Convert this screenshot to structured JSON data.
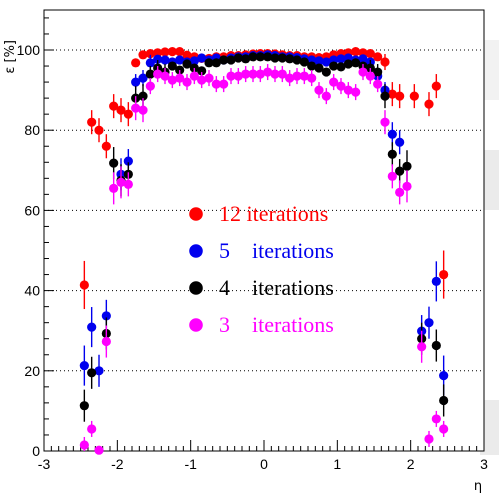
{
  "chart_data": {
    "type": "scatter",
    "xlabel": "η",
    "ylabel": "ε [%]",
    "xlim": [
      -3,
      3
    ],
    "ylim": [
      0,
      110
    ],
    "x_ticks": [
      "-3",
      "-2",
      "-1",
      "0",
      "1",
      "2",
      "3"
    ],
    "y_ticks": [
      "0",
      "20",
      "40",
      "60",
      "80",
      "100"
    ],
    "grid_y": true,
    "legend_position": "center",
    "series": [
      {
        "name": "12 iterations",
        "legend_text": "12 iterations",
        "color": "#ff0000",
        "points": [
          [
            -2.45,
            41.4,
            6
          ],
          [
            -2.35,
            82.0,
            3
          ],
          [
            -2.25,
            80.0,
            3
          ],
          [
            -2.15,
            76.0,
            3
          ],
          [
            -2.05,
            86.0,
            3
          ],
          [
            -1.95,
            85.0,
            3
          ],
          [
            -1.85,
            84.0,
            3
          ],
          [
            -1.75,
            96.8,
            1
          ],
          [
            -1.65,
            98.8,
            1
          ],
          [
            -1.55,
            99.1,
            1
          ],
          [
            -1.45,
            99.3,
            1
          ],
          [
            -1.35,
            99.5,
            1
          ],
          [
            -1.25,
            99.6,
            1
          ],
          [
            -1.15,
            99.6,
            1
          ],
          [
            -1.05,
            98.7,
            1
          ],
          [
            -0.95,
            98.3,
            1
          ],
          [
            -0.85,
            97.9,
            1
          ],
          [
            -0.75,
            97.9,
            1
          ],
          [
            -0.65,
            98.3,
            1
          ],
          [
            -0.55,
            98.3,
            1
          ],
          [
            -0.45,
            98.6,
            1
          ],
          [
            -0.35,
            98.6,
            1
          ],
          [
            -0.25,
            98.8,
            1
          ],
          [
            -0.15,
            99.0,
            1
          ],
          [
            -0.05,
            99.1,
            1
          ],
          [
            0.05,
            99.1,
            1
          ],
          [
            0.15,
            99.0,
            1
          ],
          [
            0.25,
            98.8,
            1
          ],
          [
            0.35,
            98.6,
            1
          ],
          [
            0.45,
            98.6,
            1
          ],
          [
            0.55,
            98.3,
            1
          ],
          [
            0.65,
            98.3,
            1
          ],
          [
            0.75,
            98.1,
            1
          ],
          [
            0.85,
            98.3,
            1
          ],
          [
            0.95,
            98.8,
            1
          ],
          [
            1.05,
            99.1,
            1
          ],
          [
            1.15,
            99.3,
            1
          ],
          [
            1.25,
            99.6,
            1
          ],
          [
            1.35,
            99.3,
            1
          ],
          [
            1.45,
            99.1,
            1
          ],
          [
            1.55,
            98.3,
            1
          ],
          [
            1.65,
            97.0,
            2
          ],
          [
            1.75,
            89.0,
            3
          ],
          [
            1.85,
            88.5,
            3
          ],
          [
            2.05,
            88.5,
            3
          ],
          [
            2.25,
            86.5,
            3
          ],
          [
            2.35,
            91.0,
            3
          ],
          [
            2.45,
            44.0,
            6
          ]
        ]
      },
      {
        "name": "5 iterations",
        "legend_text": "5    iterations",
        "color": "#0000ee",
        "points": [
          [
            -2.45,
            21.3,
            5
          ],
          [
            -2.35,
            30.9,
            5
          ],
          [
            -2.25,
            20.0,
            4
          ],
          [
            -2.15,
            33.7,
            4
          ],
          [
            -1.95,
            69.0,
            4
          ],
          [
            -1.85,
            72.3,
            3
          ],
          [
            -1.75,
            92.0,
            2
          ],
          [
            -1.65,
            93.0,
            2
          ],
          [
            -1.55,
            96.8,
            2
          ],
          [
            -1.45,
            97.7,
            1
          ],
          [
            -1.35,
            97.5,
            1
          ],
          [
            -1.25,
            97.0,
            1
          ],
          [
            -1.15,
            97.5,
            1
          ],
          [
            -1.05,
            97.0,
            1
          ],
          [
            -0.95,
            97.3,
            1
          ],
          [
            -0.85,
            98.0,
            1
          ],
          [
            -0.75,
            97.5,
            1
          ],
          [
            -0.65,
            98.0,
            1
          ],
          [
            -0.55,
            97.5,
            1
          ],
          [
            -0.45,
            98.0,
            1
          ],
          [
            -0.35,
            98.3,
            1
          ],
          [
            -0.25,
            98.3,
            1
          ],
          [
            -0.15,
            98.6,
            1
          ],
          [
            -0.05,
            98.6,
            1
          ],
          [
            0.05,
            98.8,
            1
          ],
          [
            0.15,
            98.6,
            1
          ],
          [
            0.25,
            98.3,
            1
          ],
          [
            0.35,
            98.3,
            1
          ],
          [
            0.45,
            98.1,
            1
          ],
          [
            0.55,
            97.8,
            1
          ],
          [
            0.65,
            97.5,
            1
          ],
          [
            0.75,
            97.3,
            1
          ],
          [
            0.85,
            97.0,
            1
          ],
          [
            0.95,
            97.5,
            1
          ],
          [
            1.05,
            97.8,
            1
          ],
          [
            1.15,
            98.0,
            1
          ],
          [
            1.25,
            97.5,
            1
          ],
          [
            1.35,
            97.8,
            1
          ],
          [
            1.45,
            97.0,
            1
          ],
          [
            1.55,
            93.5,
            2
          ],
          [
            1.65,
            90.0,
            2
          ],
          [
            1.75,
            79.0,
            3
          ],
          [
            1.85,
            77.0,
            3
          ],
          [
            2.15,
            29.9,
            4
          ],
          [
            2.25,
            32.0,
            4
          ],
          [
            2.35,
            42.3,
            5
          ],
          [
            2.45,
            18.8,
            5
          ]
        ]
      },
      {
        "name": "4 iterations",
        "legend_text": "4    iterations",
        "color": "#000000",
        "points": [
          [
            -2.45,
            11.3,
            4
          ],
          [
            -2.35,
            19.5,
            4
          ],
          [
            -2.15,
            29.3,
            4
          ],
          [
            -2.05,
            71.8,
            4
          ],
          [
            -1.95,
            67.5,
            4
          ],
          [
            -1.85,
            69.0,
            3
          ],
          [
            -1.75,
            88.0,
            3
          ],
          [
            -1.65,
            88.5,
            3
          ],
          [
            -1.55,
            94.0,
            2
          ],
          [
            -1.45,
            95.5,
            2
          ],
          [
            -1.35,
            94.5,
            2
          ],
          [
            -1.25,
            96.0,
            1
          ],
          [
            -1.15,
            95.0,
            1
          ],
          [
            -1.05,
            96.5,
            1
          ],
          [
            -0.95,
            95.5,
            1
          ],
          [
            -0.85,
            94.8,
            1
          ],
          [
            -0.75,
            96.8,
            1
          ],
          [
            -0.65,
            96.8,
            1
          ],
          [
            -0.55,
            97.5,
            1
          ],
          [
            -0.45,
            97.5,
            1
          ],
          [
            -0.35,
            98.0,
            1
          ],
          [
            -0.25,
            97.8,
            1
          ],
          [
            -0.15,
            98.3,
            1
          ],
          [
            -0.05,
            98.3,
            1
          ],
          [
            0.05,
            98.3,
            1
          ],
          [
            0.15,
            98.0,
            1
          ],
          [
            0.25,
            98.0,
            1
          ],
          [
            0.35,
            97.8,
            1
          ],
          [
            0.45,
            97.5,
            1
          ],
          [
            0.55,
            97.0,
            1
          ],
          [
            0.65,
            96.0,
            1
          ],
          [
            0.75,
            95.5,
            1
          ],
          [
            0.85,
            94.5,
            1
          ],
          [
            0.95,
            96.0,
            1
          ],
          [
            1.05,
            95.8,
            1
          ],
          [
            1.15,
            96.5,
            1
          ],
          [
            1.25,
            96.8,
            1
          ],
          [
            1.35,
            96.0,
            1
          ],
          [
            1.45,
            95.5,
            2
          ],
          [
            1.55,
            94.5,
            2
          ],
          [
            1.65,
            88.5,
            3
          ],
          [
            1.75,
            74.0,
            3
          ],
          [
            1.85,
            69.8,
            3
          ],
          [
            1.95,
            71.0,
            4
          ],
          [
            2.15,
            28.0,
            4
          ],
          [
            2.35,
            26.3,
            4
          ],
          [
            2.45,
            12.6,
            4
          ]
        ]
      },
      {
        "name": "3 iterations",
        "legend_text": "3    iterations",
        "color": "#ff00ff",
        "points": [
          [
            -2.45,
            1.5,
            2
          ],
          [
            -2.35,
            5.5,
            2
          ],
          [
            -2.25,
            0.2,
            1
          ],
          [
            -2.15,
            27.3,
            4
          ],
          [
            -2.05,
            65.5,
            4
          ],
          [
            -1.95,
            67.0,
            4
          ],
          [
            -1.85,
            66.5,
            3
          ],
          [
            -1.75,
            85.5,
            3
          ],
          [
            -1.65,
            85.0,
            3
          ],
          [
            -1.55,
            91.0,
            2
          ],
          [
            -1.45,
            94.0,
            2
          ],
          [
            -1.35,
            93.5,
            2
          ],
          [
            -1.25,
            92.5,
            2
          ],
          [
            -1.15,
            93.0,
            2
          ],
          [
            -1.05,
            92.0,
            2
          ],
          [
            -0.95,
            93.5,
            2
          ],
          [
            -0.85,
            92.5,
            2
          ],
          [
            -0.75,
            93.0,
            2
          ],
          [
            -0.65,
            91.5,
            2
          ],
          [
            -0.55,
            91.5,
            2
          ],
          [
            -0.45,
            93.5,
            2
          ],
          [
            -0.35,
            93.5,
            2
          ],
          [
            -0.25,
            94.0,
            2
          ],
          [
            -0.15,
            94.0,
            2
          ],
          [
            -0.05,
            94.0,
            2
          ],
          [
            0.05,
            94.5,
            2
          ],
          [
            0.15,
            94.0,
            2
          ],
          [
            0.25,
            94.0,
            2
          ],
          [
            0.35,
            93.0,
            2
          ],
          [
            0.45,
            93.5,
            2
          ],
          [
            0.55,
            93.5,
            2
          ],
          [
            0.65,
            93.0,
            2
          ],
          [
            0.75,
            90.0,
            2
          ],
          [
            0.85,
            88.5,
            2
          ],
          [
            0.95,
            92.0,
            2
          ],
          [
            1.05,
            91.0,
            2
          ],
          [
            1.15,
            90.0,
            2
          ],
          [
            1.25,
            89.5,
            2
          ],
          [
            1.35,
            94.5,
            2
          ],
          [
            1.45,
            93.5,
            2
          ],
          [
            1.55,
            91.5,
            2
          ],
          [
            1.65,
            82.0,
            3
          ],
          [
            1.75,
            68.5,
            3
          ],
          [
            1.85,
            64.5,
            3
          ],
          [
            1.95,
            66.0,
            4
          ],
          [
            2.15,
            26.0,
            4
          ],
          [
            2.25,
            3.0,
            2
          ],
          [
            2.35,
            8.0,
            2
          ],
          [
            2.45,
            5.5,
            2
          ]
        ]
      }
    ]
  }
}
